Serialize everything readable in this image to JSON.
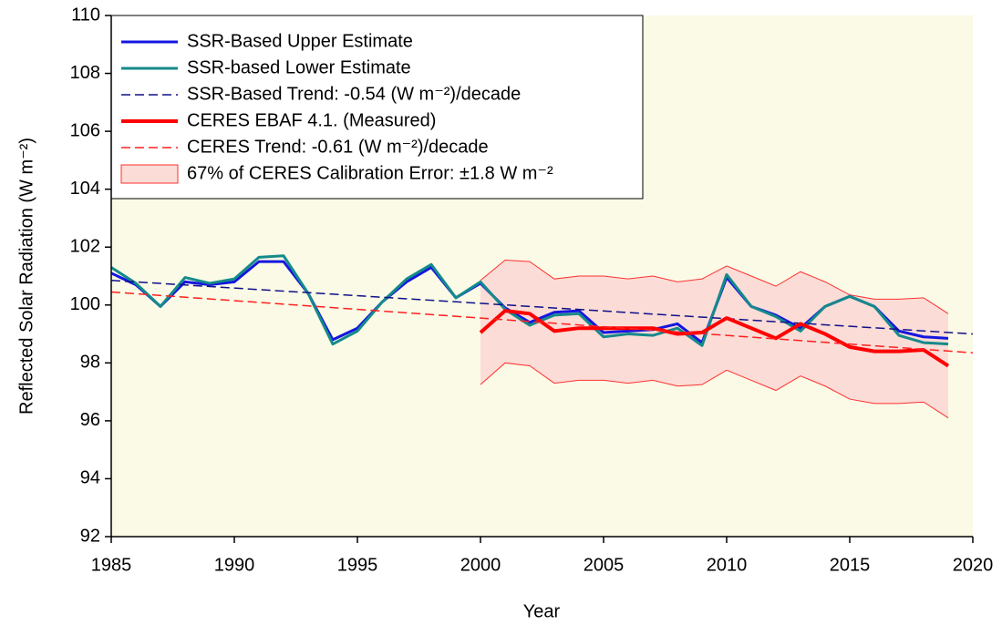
{
  "chart_data": {
    "type": "line",
    "xlabel": "Year",
    "ylabel": "Reflected Solar Radiation (W m⁻²)",
    "xlim": [
      1985,
      2020
    ],
    "ylim": [
      92,
      110
    ],
    "xticks": [
      1985,
      1990,
      1995,
      2000,
      2005,
      2010,
      2015,
      2020
    ],
    "yticks": [
      92,
      94,
      96,
      98,
      100,
      102,
      104,
      106,
      108,
      110
    ],
    "background": "#fafae6",
    "legend": "upper-left",
    "series": [
      {
        "name": "SSR-Based Upper Estimate",
        "color": "#1515e0",
        "style": "solid",
        "width": 3,
        "x": [
          1985,
          1986,
          1987,
          1988,
          1989,
          1990,
          1991,
          1992,
          1993,
          1994,
          1995,
          1996,
          1997,
          1998,
          1999,
          2000,
          2001,
          2002,
          2003,
          2004,
          2005,
          2006,
          2007,
          2008,
          2009,
          2010,
          2011,
          2012,
          2013,
          2014,
          2015,
          2016,
          2017,
          2018,
          2019
        ],
        "values": [
          101.1,
          100.7,
          99.95,
          100.8,
          100.7,
          100.8,
          101.5,
          101.5,
          100.4,
          98.8,
          99.2,
          100.1,
          100.8,
          101.3,
          100.25,
          100.75,
          99.9,
          99.4,
          99.75,
          99.8,
          99.05,
          99.1,
          99.15,
          99.35,
          98.7,
          100.95,
          99.95,
          99.65,
          99.2,
          99.95,
          100.3,
          99.95,
          99.1,
          98.9,
          98.85
        ]
      },
      {
        "name": "SSR-based Lower Estimate",
        "color": "#158a8a",
        "style": "solid",
        "width": 3,
        "x": [
          1985,
          1986,
          1987,
          1988,
          1989,
          1990,
          1991,
          1992,
          1993,
          1994,
          1995,
          1996,
          1997,
          1998,
          1999,
          2000,
          2001,
          2002,
          2003,
          2004,
          2005,
          2006,
          2007,
          2008,
          2009,
          2010,
          2011,
          2012,
          2013,
          2014,
          2015,
          2016,
          2017,
          2018,
          2019
        ],
        "values": [
          101.3,
          100.75,
          99.95,
          100.95,
          100.75,
          100.9,
          101.65,
          101.7,
          100.4,
          98.65,
          99.1,
          100.1,
          100.9,
          101.4,
          100.25,
          100.8,
          99.85,
          99.3,
          99.65,
          99.7,
          98.9,
          99.0,
          98.95,
          99.2,
          98.6,
          101.05,
          99.95,
          99.6,
          99.1,
          99.95,
          100.3,
          99.95,
          98.95,
          98.7,
          98.65
        ]
      },
      {
        "name": "SSR-Based Trend: -0.54 (W m⁻²)/decade",
        "color": "#10108a",
        "style": "dashed",
        "width": 1.5,
        "x": [
          1985,
          2020
        ],
        "values": [
          100.85,
          99.0
        ]
      },
      {
        "name": "CERES EBAF 4.1. (Measured)",
        "color": "#ff0000",
        "style": "solid",
        "width": 4,
        "x": [
          2000,
          2001,
          2002,
          2003,
          2004,
          2005,
          2006,
          2007,
          2008,
          2009,
          2010,
          2011,
          2012,
          2013,
          2014,
          2015,
          2016,
          2017,
          2018,
          2019
        ],
        "values": [
          99.05,
          99.8,
          99.7,
          99.1,
          99.2,
          99.2,
          99.2,
          99.2,
          99.0,
          99.05,
          99.55,
          99.2,
          98.85,
          99.35,
          99.0,
          98.55,
          98.4,
          98.4,
          98.45,
          97.9
        ]
      },
      {
        "name": "CERES Trend: -0.61 (W m⁻²)/decade",
        "color": "#ff2020",
        "style": "dashed",
        "width": 1.5,
        "x": [
          1985,
          2020
        ],
        "values": [
          100.45,
          98.35
        ]
      },
      {
        "name": "67% of CERES Calibration Error: ±1.8 W m⁻²",
        "color": "#ff3030",
        "fill": "#fbdcd6",
        "style": "band",
        "width": 1,
        "x": [
          2000,
          2001,
          2002,
          2003,
          2004,
          2005,
          2006,
          2007,
          2008,
          2009,
          2010,
          2011,
          2012,
          2013,
          2014,
          2015,
          2016,
          2017,
          2018,
          2019
        ],
        "lower": [
          97.25,
          98.0,
          97.9,
          97.3,
          97.4,
          97.4,
          97.3,
          97.4,
          97.2,
          97.25,
          97.75,
          97.4,
          97.05,
          97.55,
          97.2,
          96.75,
          96.6,
          96.6,
          96.65,
          96.1
        ],
        "upper": [
          100.85,
          101.55,
          101.5,
          100.9,
          101.0,
          101.0,
          100.9,
          101.0,
          100.8,
          100.9,
          101.35,
          101.0,
          100.65,
          101.15,
          100.8,
          100.35,
          100.2,
          100.2,
          100.25,
          99.7
        ]
      }
    ]
  }
}
